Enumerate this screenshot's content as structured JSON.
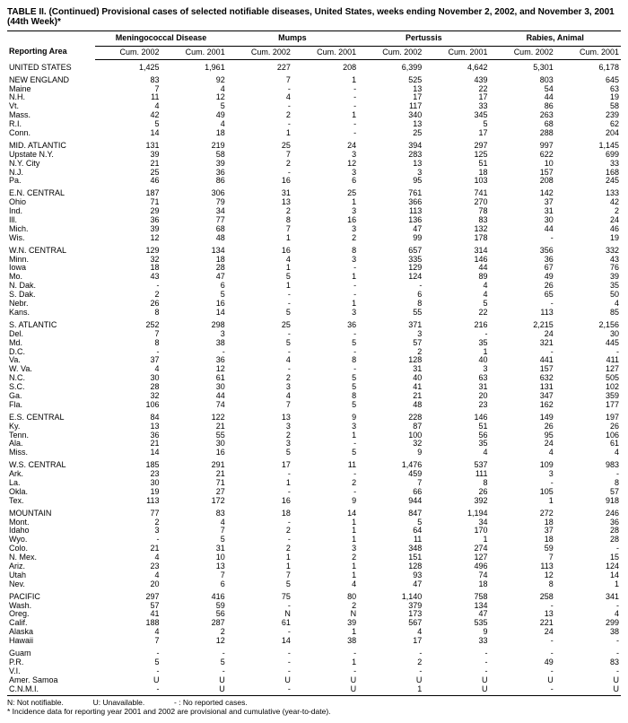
{
  "title": "TABLE II. (Continued) Provisional cases of selected notifiable diseases, United States, weeks ending November 2, 2002, and November 3, 2001 (44th Week)*",
  "columns": {
    "groups": [
      "Meningococcal Disease",
      "Mumps",
      "Pertussis",
      "Rabies, Animal"
    ],
    "sub": [
      "Cum. 2002",
      "Cum. 2001",
      "Cum. 2002",
      "Cum. 2001",
      "Cum. 2002",
      "Cum. 2001",
      "Cum. 2002",
      "Cum. 2001"
    ],
    "area_header": "Reporting Area"
  },
  "sections": [
    {
      "rows": [
        {
          "area": "UNITED STATES",
          "v": [
            "1,425",
            "1,961",
            "227",
            "208",
            "6,399",
            "4,642",
            "5,301",
            "6,178"
          ]
        }
      ]
    },
    {
      "rows": [
        {
          "area": "NEW ENGLAND",
          "v": [
            "83",
            "92",
            "7",
            "1",
            "525",
            "439",
            "803",
            "645"
          ]
        },
        {
          "area": "Maine",
          "v": [
            "7",
            "4",
            "-",
            "-",
            "13",
            "22",
            "54",
            "63"
          ]
        },
        {
          "area": "N.H.",
          "v": [
            "11",
            "12",
            "4",
            "-",
            "17",
            "17",
            "44",
            "19"
          ]
        },
        {
          "area": "Vt.",
          "v": [
            "4",
            "5",
            "-",
            "-",
            "117",
            "33",
            "86",
            "58"
          ]
        },
        {
          "area": "Mass.",
          "v": [
            "42",
            "49",
            "2",
            "1",
            "340",
            "345",
            "263",
            "239"
          ]
        },
        {
          "area": "R.I.",
          "v": [
            "5",
            "4",
            "-",
            "-",
            "13",
            "5",
            "68",
            "62"
          ]
        },
        {
          "area": "Conn.",
          "v": [
            "14",
            "18",
            "1",
            "-",
            "25",
            "17",
            "288",
            "204"
          ]
        }
      ]
    },
    {
      "rows": [
        {
          "area": "MID. ATLANTIC",
          "v": [
            "131",
            "219",
            "25",
            "24",
            "394",
            "297",
            "997",
            "1,145"
          ]
        },
        {
          "area": "Upstate N.Y.",
          "v": [
            "39",
            "58",
            "7",
            "3",
            "283",
            "125",
            "622",
            "699"
          ]
        },
        {
          "area": "N.Y. City",
          "v": [
            "21",
            "39",
            "2",
            "12",
            "13",
            "51",
            "10",
            "33"
          ]
        },
        {
          "area": "N.J.",
          "v": [
            "25",
            "36",
            "-",
            "3",
            "3",
            "18",
            "157",
            "168"
          ]
        },
        {
          "area": "Pa.",
          "v": [
            "46",
            "86",
            "16",
            "6",
            "95",
            "103",
            "208",
            "245"
          ]
        }
      ]
    },
    {
      "rows": [
        {
          "area": "E.N. CENTRAL",
          "v": [
            "187",
            "306",
            "31",
            "25",
            "761",
            "741",
            "142",
            "133"
          ]
        },
        {
          "area": "Ohio",
          "v": [
            "71",
            "79",
            "13",
            "1",
            "366",
            "270",
            "37",
            "42"
          ]
        },
        {
          "area": "Ind.",
          "v": [
            "29",
            "34",
            "2",
            "3",
            "113",
            "78",
            "31",
            "2"
          ]
        },
        {
          "area": "Ill.",
          "v": [
            "36",
            "77",
            "8",
            "16",
            "136",
            "83",
            "30",
            "24"
          ]
        },
        {
          "area": "Mich.",
          "v": [
            "39",
            "68",
            "7",
            "3",
            "47",
            "132",
            "44",
            "46"
          ]
        },
        {
          "area": "Wis.",
          "v": [
            "12",
            "48",
            "1",
            "2",
            "99",
            "178",
            "-",
            "19"
          ]
        }
      ]
    },
    {
      "rows": [
        {
          "area": "W.N. CENTRAL",
          "v": [
            "129",
            "134",
            "16",
            "8",
            "657",
            "314",
            "356",
            "332"
          ]
        },
        {
          "area": "Minn.",
          "v": [
            "32",
            "18",
            "4",
            "3",
            "335",
            "146",
            "36",
            "43"
          ]
        },
        {
          "area": "Iowa",
          "v": [
            "18",
            "28",
            "1",
            "-",
            "129",
            "44",
            "67",
            "76"
          ]
        },
        {
          "area": "Mo.",
          "v": [
            "43",
            "47",
            "5",
            "1",
            "124",
            "89",
            "49",
            "39"
          ]
        },
        {
          "area": "N. Dak.",
          "v": [
            "-",
            "6",
            "1",
            "-",
            "-",
            "4",
            "26",
            "35"
          ]
        },
        {
          "area": "S. Dak.",
          "v": [
            "2",
            "5",
            "-",
            "-",
            "6",
            "4",
            "65",
            "50"
          ]
        },
        {
          "area": "Nebr.",
          "v": [
            "26",
            "16",
            "-",
            "1",
            "8",
            "5",
            "-",
            "4"
          ]
        },
        {
          "area": "Kans.",
          "v": [
            "8",
            "14",
            "5",
            "3",
            "55",
            "22",
            "113",
            "85"
          ]
        }
      ]
    },
    {
      "rows": [
        {
          "area": "S. ATLANTIC",
          "v": [
            "252",
            "298",
            "25",
            "36",
            "371",
            "216",
            "2,215",
            "2,156"
          ]
        },
        {
          "area": "Del.",
          "v": [
            "7",
            "3",
            "-",
            "-",
            "3",
            "-",
            "24",
            "30"
          ]
        },
        {
          "area": "Md.",
          "v": [
            "8",
            "38",
            "5",
            "5",
            "57",
            "35",
            "321",
            "445"
          ]
        },
        {
          "area": "D.C.",
          "v": [
            "-",
            "-",
            "-",
            "-",
            "2",
            "1",
            "-",
            "-"
          ]
        },
        {
          "area": "Va.",
          "v": [
            "37",
            "36",
            "4",
            "8",
            "128",
            "40",
            "441",
            "411"
          ]
        },
        {
          "area": "W. Va.",
          "v": [
            "4",
            "12",
            "-",
            "-",
            "31",
            "3",
            "157",
            "127"
          ]
        },
        {
          "area": "N.C.",
          "v": [
            "30",
            "61",
            "2",
            "5",
            "40",
            "63",
            "632",
            "505"
          ]
        },
        {
          "area": "S.C.",
          "v": [
            "28",
            "30",
            "3",
            "5",
            "41",
            "31",
            "131",
            "102"
          ]
        },
        {
          "area": "Ga.",
          "v": [
            "32",
            "44",
            "4",
            "8",
            "21",
            "20",
            "347",
            "359"
          ]
        },
        {
          "area": "Fla.",
          "v": [
            "106",
            "74",
            "7",
            "5",
            "48",
            "23",
            "162",
            "177"
          ]
        }
      ]
    },
    {
      "rows": [
        {
          "area": "E.S. CENTRAL",
          "v": [
            "84",
            "122",
            "13",
            "9",
            "228",
            "146",
            "149",
            "197"
          ]
        },
        {
          "area": "Ky.",
          "v": [
            "13",
            "21",
            "3",
            "3",
            "87",
            "51",
            "26",
            "26"
          ]
        },
        {
          "area": "Tenn.",
          "v": [
            "36",
            "55",
            "2",
            "1",
            "100",
            "56",
            "95",
            "106"
          ]
        },
        {
          "area": "Ala.",
          "v": [
            "21",
            "30",
            "3",
            "-",
            "32",
            "35",
            "24",
            "61"
          ]
        },
        {
          "area": "Miss.",
          "v": [
            "14",
            "16",
            "5",
            "5",
            "9",
            "4",
            "4",
            "4"
          ]
        }
      ]
    },
    {
      "rows": [
        {
          "area": "W.S. CENTRAL",
          "v": [
            "185",
            "291",
            "17",
            "11",
            "1,476",
            "537",
            "109",
            "983"
          ]
        },
        {
          "area": "Ark.",
          "v": [
            "23",
            "21",
            "-",
            "-",
            "459",
            "111",
            "3",
            "-"
          ]
        },
        {
          "area": "La.",
          "v": [
            "30",
            "71",
            "1",
            "2",
            "7",
            "8",
            "-",
            "8"
          ]
        },
        {
          "area": "Okla.",
          "v": [
            "19",
            "27",
            "-",
            "-",
            "66",
            "26",
            "105",
            "57"
          ]
        },
        {
          "area": "Tex.",
          "v": [
            "113",
            "172",
            "16",
            "9",
            "944",
            "392",
            "1",
            "918"
          ]
        }
      ]
    },
    {
      "rows": [
        {
          "area": "MOUNTAIN",
          "v": [
            "77",
            "83",
            "18",
            "14",
            "847",
            "1,194",
            "272",
            "246"
          ]
        },
        {
          "area": "Mont.",
          "v": [
            "2",
            "4",
            "-",
            "1",
            "5",
            "34",
            "18",
            "36"
          ]
        },
        {
          "area": "Idaho",
          "v": [
            "3",
            "7",
            "2",
            "1",
            "64",
            "170",
            "37",
            "28"
          ]
        },
        {
          "area": "Wyo.",
          "v": [
            "-",
            "5",
            "-",
            "1",
            "11",
            "1",
            "18",
            "28"
          ]
        },
        {
          "area": "Colo.",
          "v": [
            "21",
            "31",
            "2",
            "3",
            "348",
            "274",
            "59",
            "-"
          ]
        },
        {
          "area": "N. Mex.",
          "v": [
            "4",
            "10",
            "1",
            "2",
            "151",
            "127",
            "7",
            "15"
          ]
        },
        {
          "area": "Ariz.",
          "v": [
            "23",
            "13",
            "1",
            "1",
            "128",
            "496",
            "113",
            "124"
          ]
        },
        {
          "area": "Utah",
          "v": [
            "4",
            "7",
            "7",
            "1",
            "93",
            "74",
            "12",
            "14"
          ]
        },
        {
          "area": "Nev.",
          "v": [
            "20",
            "6",
            "5",
            "4",
            "47",
            "18",
            "8",
            "1"
          ]
        }
      ]
    },
    {
      "rows": [
        {
          "area": "PACIFIC",
          "v": [
            "297",
            "416",
            "75",
            "80",
            "1,140",
            "758",
            "258",
            "341"
          ]
        },
        {
          "area": "Wash.",
          "v": [
            "57",
            "59",
            "-",
            "2",
            "379",
            "134",
            "-",
            "-"
          ]
        },
        {
          "area": "Oreg.",
          "v": [
            "41",
            "56",
            "N",
            "N",
            "173",
            "47",
            "13",
            "4"
          ]
        },
        {
          "area": "Calif.",
          "v": [
            "188",
            "287",
            "61",
            "39",
            "567",
            "535",
            "221",
            "299"
          ]
        },
        {
          "area": "Alaska",
          "v": [
            "4",
            "2",
            "-",
            "1",
            "4",
            "9",
            "24",
            "38"
          ]
        },
        {
          "area": "Hawaii",
          "v": [
            "7",
            "12",
            "14",
            "38",
            "17",
            "33",
            "-",
            "-"
          ]
        }
      ]
    },
    {
      "rows": [
        {
          "area": "Guam",
          "v": [
            "-",
            "-",
            "-",
            "-",
            "-",
            "-",
            "-",
            "-"
          ]
        },
        {
          "area": "P.R.",
          "v": [
            "5",
            "5",
            "-",
            "1",
            "2",
            "-",
            "49",
            "83"
          ]
        },
        {
          "area": "V.I.",
          "v": [
            "-",
            "-",
            "-",
            "-",
            "-",
            "-",
            "-",
            "-"
          ]
        },
        {
          "area": "Amer. Samoa",
          "v": [
            "U",
            "U",
            "U",
            "U",
            "U",
            "U",
            "U",
            "U"
          ]
        },
        {
          "area": "C.N.M.I.",
          "v": [
            "-",
            "U",
            "-",
            "U",
            "1",
            "U",
            "-",
            "U"
          ]
        }
      ]
    }
  ],
  "footnotes": {
    "line1_a": "N: Not notifiable.",
    "line1_b": "U: Unavailable.",
    "line1_c": "- : No reported cases.",
    "line2": "* Incidence data for reporting year 2001 and 2002 are provisional and cumulative (year-to-date)."
  }
}
